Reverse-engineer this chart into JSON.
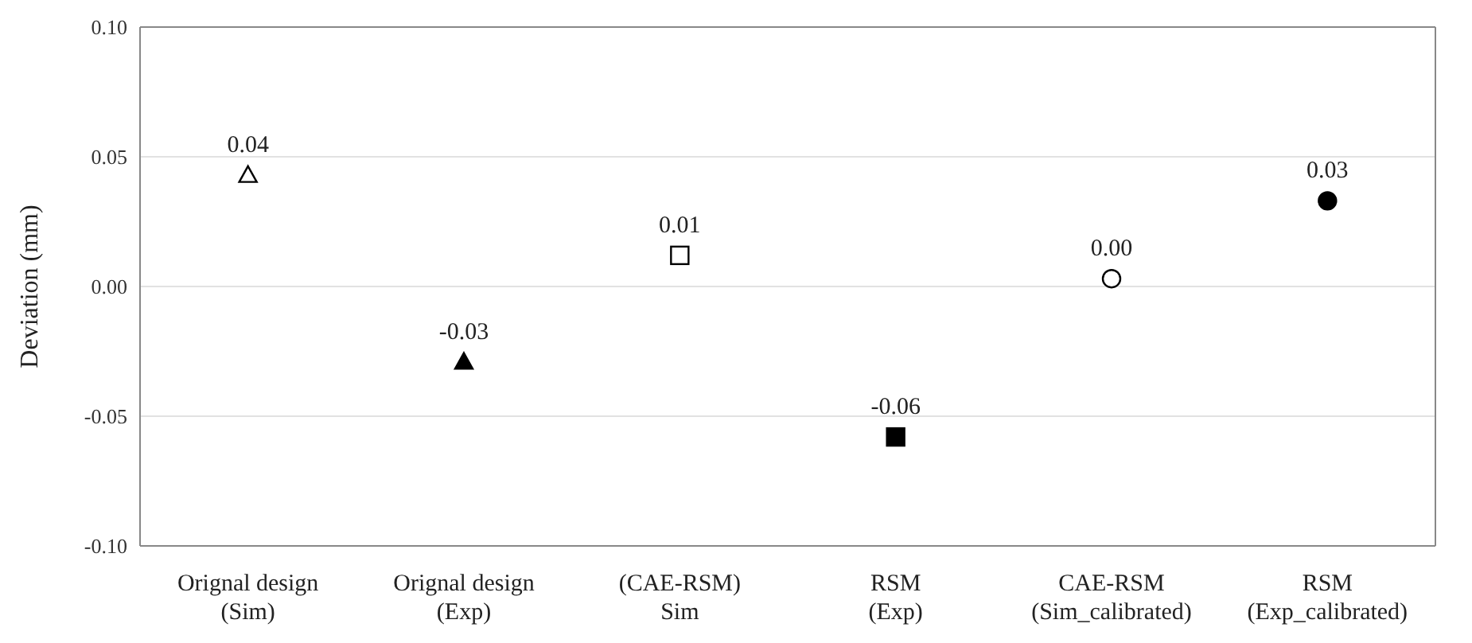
{
  "chart_data": {
    "type": "scatter",
    "ylabel": "Deviation (mm)",
    "categories": [
      "Orignal design\n(Sim)",
      "Orignal design\n(Exp)",
      "(CAE-RSM)\nSim",
      "RSM\n(Exp)",
      "CAE-RSM\n(Sim_calibrated)",
      "RSM\n(Exp_calibrated)"
    ],
    "series": [
      {
        "marker": "triangle",
        "color": "#000000",
        "colors": [
          "#ffffff",
          "#000000",
          null,
          null,
          null,
          null
        ],
        "values": [
          0.043,
          -0.029,
          null,
          null,
          null,
          null
        ],
        "value_labels": [
          "0.04",
          "-0.03",
          null,
          null,
          null,
          null
        ]
      },
      {
        "marker": "square",
        "color": "#000000",
        "colors": [
          null,
          null,
          "#ffffff",
          "#000000",
          null,
          null
        ],
        "values": [
          null,
          null,
          0.012,
          -0.058,
          null,
          null
        ],
        "value_labels": [
          null,
          null,
          "0.01",
          "-0.06",
          null,
          null
        ]
      },
      {
        "marker": "circle",
        "color": "#000000",
        "colors": [
          null,
          null,
          null,
          null,
          "#ffffff",
          "#000000"
        ],
        "values": [
          null,
          null,
          null,
          null,
          0.003,
          0.033
        ],
        "value_labels": [
          null,
          null,
          null,
          null,
          "0.00",
          "0.03"
        ]
      }
    ],
    "ylim": [
      -0.1,
      0.1
    ],
    "yticks": [
      {
        "value": -0.1,
        "label": "-0.10"
      },
      {
        "value": -0.05,
        "label": "-0.05"
      },
      {
        "value": 0,
        "label": "0.00"
      },
      {
        "value": 0.05,
        "label": "0.05"
      },
      {
        "value": 0.1,
        "label": "0.10"
      }
    ],
    "grid": "y",
    "legend": false
  }
}
